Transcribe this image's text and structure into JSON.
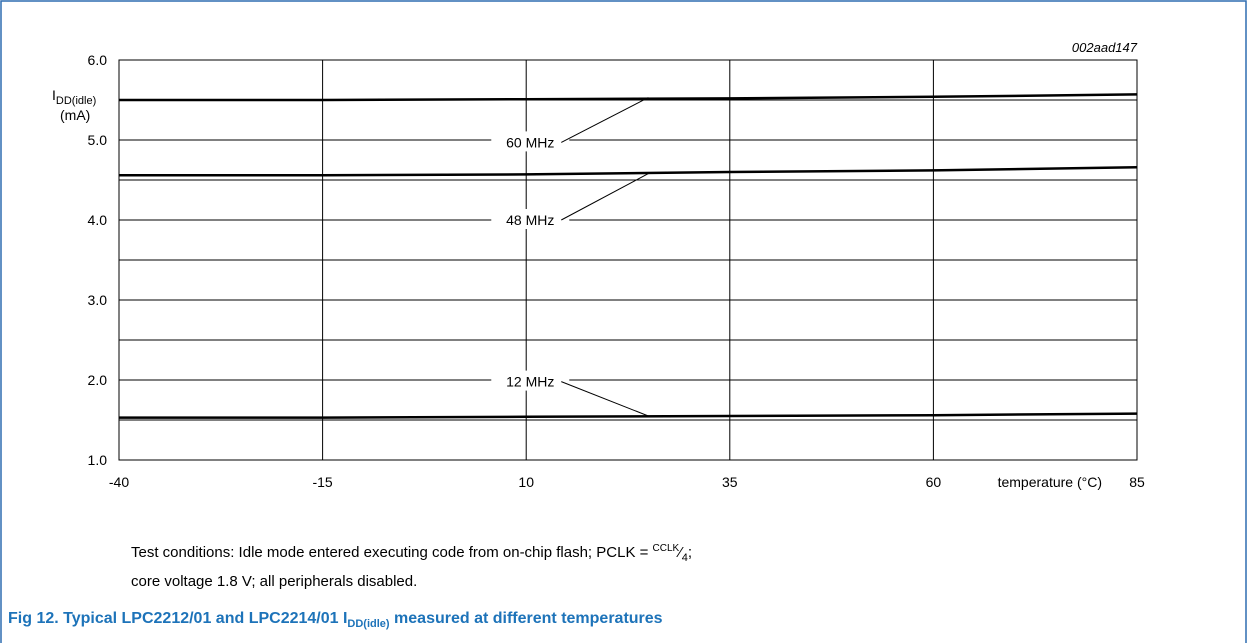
{
  "figure_id": "002aad147",
  "colors": {
    "frame": "#2f6db0",
    "caption": "#1d73b9",
    "line": "#000000",
    "grid": "#000000"
  },
  "chart_data": {
    "type": "line",
    "x": [
      -40,
      -15,
      10,
      35,
      60,
      85
    ],
    "xlim": [
      -40,
      85
    ],
    "ylim": [
      1.0,
      6.0
    ],
    "ylabel_main": "I",
    "ylabel_sub": "DD(idle)",
    "ylabel_unit": "(mA)",
    "xlabel": "temperature (°C)",
    "xticks": [
      "-40",
      "-15",
      "10",
      "35",
      "60",
      "85"
    ],
    "yticks": [
      "1.0",
      "2.0",
      "3.0",
      "4.0",
      "5.0",
      "6.0"
    ],
    "grid": true,
    "series": [
      {
        "name": "60 MHz",
        "values": [
          5.5,
          5.5,
          5.51,
          5.52,
          5.54,
          5.57
        ]
      },
      {
        "name": "48 MHz",
        "values": [
          4.56,
          4.56,
          4.57,
          4.6,
          4.62,
          4.66
        ]
      },
      {
        "name": "12 MHz",
        "values": [
          1.53,
          1.53,
          1.54,
          1.55,
          1.56,
          1.58
        ]
      }
    ],
    "annotations": [
      {
        "series": 0,
        "label": "60 MHz",
        "point_x": 25,
        "point_y": 5.53,
        "label_x": 10.5,
        "label_y": 4.97
      },
      {
        "series": 1,
        "label": "48 MHz",
        "point_x": 25,
        "point_y": 4.58,
        "label_x": 10.5,
        "label_y": 4.0
      },
      {
        "series": 2,
        "label": "12 MHz",
        "point_x": 25,
        "point_y": 1.55,
        "label_x": 10.5,
        "label_y": 1.98
      }
    ]
  },
  "notes": {
    "line1_prefix": "Test conditions: Idle mode entered executing code from on-chip flash; PCLK = ",
    "line1_sup": "CCLK",
    "line1_frac": "⁄",
    "line1_sub": "4",
    "line1_suffix": ";",
    "line2": "core voltage 1.8 V; all peripherals disabled."
  },
  "caption": {
    "prefix": "Fig 12. Typical LPC2212/01 and LPC2214/01 I",
    "sub": "DD(idle)",
    "suffix": " measured at different temperatures"
  }
}
